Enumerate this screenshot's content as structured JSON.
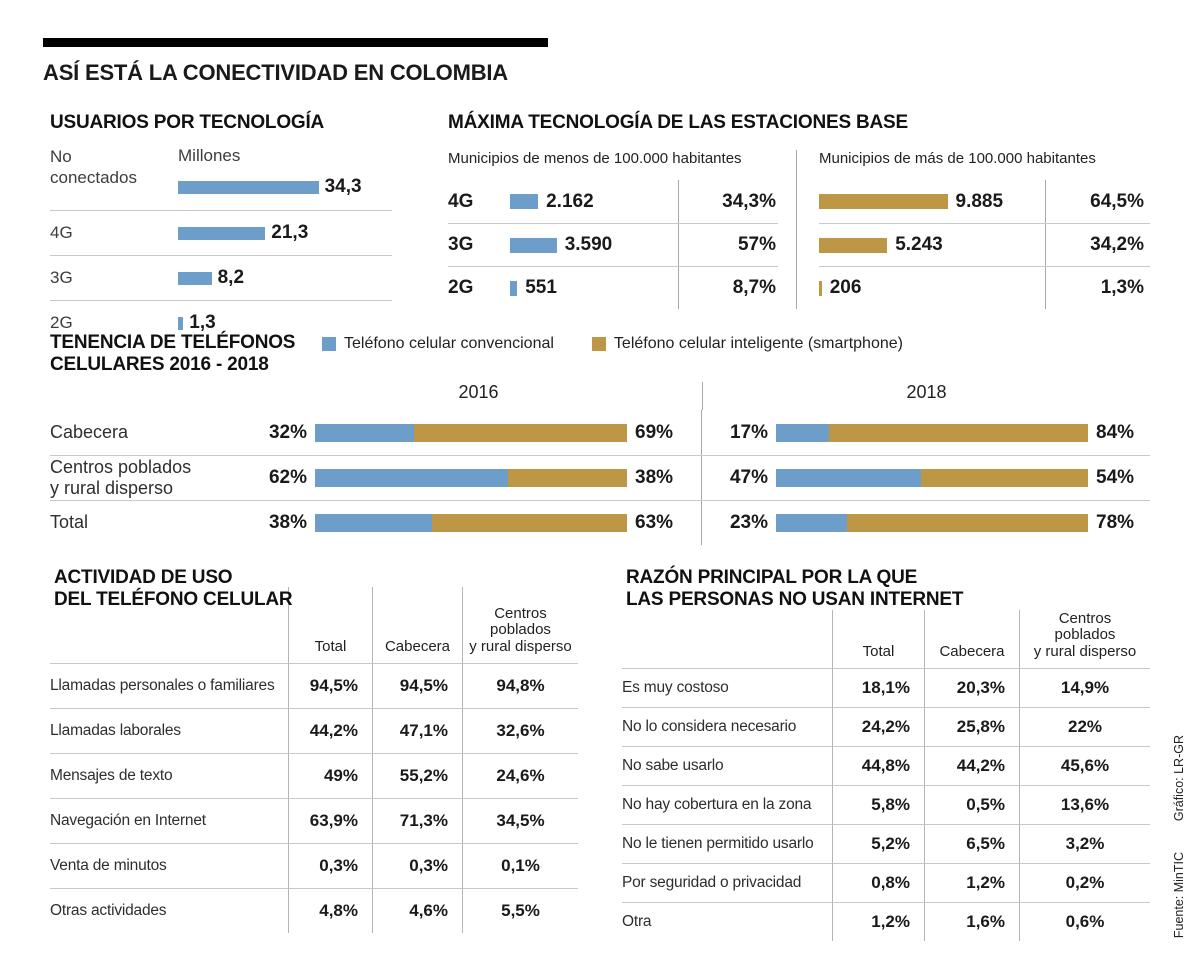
{
  "page": {
    "title": "ASÍ ESTÁ LA CONECTIVIDAD EN COLOMBIA",
    "credit": "Gráfico: LR-GR",
    "source": "Fuente: MinTIC",
    "colors": {
      "blue": "#6d9ec9",
      "gold": "#bd9746"
    }
  },
  "chart_data": [
    {
      "id": "usuarios-por-tecnologia",
      "type": "bar",
      "title": "USUARIOS POR TECNOLOGÍA",
      "unit_label": "Millones",
      "categories": [
        "No conectados",
        "4G",
        "3G",
        "2G"
      ],
      "category_lines": [
        [
          "No",
          "conectados"
        ],
        [
          "4G"
        ],
        [
          "3G"
        ],
        [
          "2G"
        ]
      ],
      "values": [
        34.3,
        21.3,
        8.2,
        1.3
      ],
      "value_labels": [
        "34,3",
        "21,3",
        "8,2",
        "1,3"
      ]
    },
    {
      "id": "maxima-tecnologia-estaciones-base",
      "type": "bar",
      "title": "MÁXIMA TECNOLOGÍA DE LAS ESTACIONES BASE",
      "categories": [
        "4G",
        "3G",
        "2G"
      ],
      "series": [
        {
          "name": "Municipios de menos de 100.000 habitantes",
          "values": [
            2162,
            3590,
            551
          ],
          "value_labels": [
            "2.162",
            "3.590",
            "551"
          ],
          "pct_labels": [
            "34,3%",
            "57%",
            "8,7%"
          ]
        },
        {
          "name": "Municipios de más de 100.000 habitantes",
          "values": [
            9885,
            5243,
            206
          ],
          "value_labels": [
            "9.885",
            "5.243",
            "206"
          ],
          "pct_labels": [
            "64,5%",
            "34,2%",
            "1,3%"
          ]
        }
      ]
    },
    {
      "id": "tenencia-telefonos-celulares-2016-2018",
      "type": "bar",
      "title": "TENENCIA DE TELÉFONOS CELULARES 2016 - 2018",
      "title_lines": [
        "TENENCIA DE TELÉFONOS",
        "CELULARES 2016 - 2018"
      ],
      "legend": [
        "Teléfono celular convencional",
        "Teléfono celular inteligente (smartphone)"
      ],
      "categories": [
        "Cabecera",
        "Centros poblados y rural disperso",
        "Total"
      ],
      "category_lines": [
        [
          "Cabecera"
        ],
        [
          "Centros poblados",
          "y rural disperso"
        ],
        [
          "Total"
        ]
      ],
      "groups": [
        {
          "year": "2016",
          "rows": [
            {
              "conventional": 32,
              "smartphone": 69,
              "conventional_label": "32%",
              "smartphone_label": "69%"
            },
            {
              "conventional": 62,
              "smartphone": 38,
              "conventional_label": "62%",
              "smartphone_label": "38%"
            },
            {
              "conventional": 38,
              "smartphone": 63,
              "conventional_label": "38%",
              "smartphone_label": "63%"
            }
          ]
        },
        {
          "year": "2018",
          "rows": [
            {
              "conventional": 17,
              "smartphone": 84,
              "conventional_label": "17%",
              "smartphone_label": "84%"
            },
            {
              "conventional": 47,
              "smartphone": 54,
              "conventional_label": "47%",
              "smartphone_label": "54%"
            },
            {
              "conventional": 23,
              "smartphone": 78,
              "conventional_label": "23%",
              "smartphone_label": "78%"
            }
          ]
        }
      ]
    },
    {
      "id": "actividad-de-uso-del-telefono-celular",
      "type": "table",
      "title_lines": [
        "ACTIVIDAD DE USO",
        "DEL TELÉFONO CELULAR"
      ],
      "columns": [
        "Total",
        "Cabecera",
        "Centros poblados y rural disperso"
      ],
      "column_lines": [
        [
          "Total"
        ],
        [
          "Cabecera"
        ],
        [
          "Centros",
          "poblados",
          "y rural disperso"
        ]
      ],
      "rows": [
        {
          "label": "Llamadas personales o familiares",
          "values": [
            "94,5%",
            "94,5%",
            "94,8%"
          ]
        },
        {
          "label": "Llamadas laborales",
          "values": [
            "44,2%",
            "47,1%",
            "32,6%"
          ]
        },
        {
          "label": "Mensajes de texto",
          "values": [
            "49%",
            "55,2%",
            "24,6%"
          ]
        },
        {
          "label": "Navegación en Internet",
          "values": [
            "63,9%",
            "71,3%",
            "34,5%"
          ]
        },
        {
          "label": "Venta de minutos",
          "values": [
            "0,3%",
            "0,3%",
            "0,1%"
          ]
        },
        {
          "label": "Otras actividades",
          "values": [
            "4,8%",
            "4,6%",
            "5,5%"
          ]
        }
      ]
    },
    {
      "id": "razon-principal-no-usan-internet",
      "type": "table",
      "title_lines": [
        "RAZÓN PRINCIPAL POR LA QUE",
        "LAS PERSONAS NO USAN INTERNET"
      ],
      "columns": [
        "Total",
        "Cabecera",
        "Centros poblados y rural disperso"
      ],
      "column_lines": [
        [
          "Total"
        ],
        [
          "Cabecera"
        ],
        [
          "Centros",
          "poblados",
          "y rural disperso"
        ]
      ],
      "rows": [
        {
          "label": "Es muy costoso",
          "values": [
            "18,1%",
            "20,3%",
            "14,9%"
          ]
        },
        {
          "label": "No lo considera necesario",
          "values": [
            "24,2%",
            "25,8%",
            "22%"
          ]
        },
        {
          "label": "No sabe usarlo",
          "values": [
            "44,8%",
            "44,2%",
            "45,6%"
          ]
        },
        {
          "label": "No hay cobertura en la zona",
          "values": [
            "5,8%",
            "0,5%",
            "13,6%"
          ]
        },
        {
          "label": "No le tienen permitido usarlo",
          "values": [
            "5,2%",
            "6,5%",
            "3,2%"
          ]
        },
        {
          "label": "Por seguridad o privacidad",
          "values": [
            "0,8%",
            "1,2%",
            "0,2%"
          ]
        },
        {
          "label": "Otra",
          "values": [
            "1,2%",
            "1,6%",
            "0,6%"
          ]
        }
      ]
    }
  ]
}
